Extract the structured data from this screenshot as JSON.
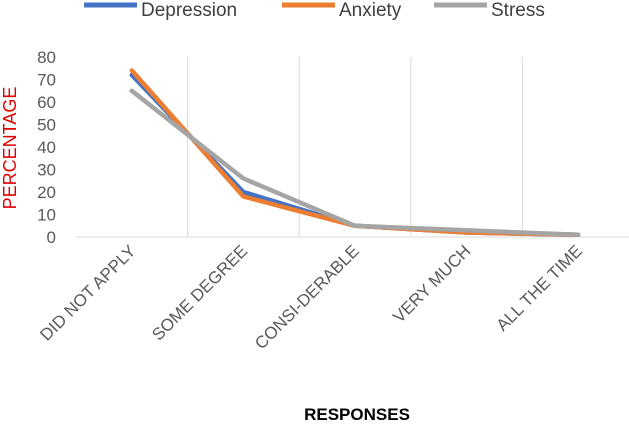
{
  "chart_data": {
    "type": "line",
    "categories": [
      "DID NOT APPLY",
      "SOME DEGREE",
      "CONSI-DERABLE",
      "VERY MUCH",
      "ALL THE TIME"
    ],
    "series": [
      {
        "name": "Depression",
        "color": "#4472C4",
        "values": [
          72,
          20,
          5,
          2,
          1
        ]
      },
      {
        "name": "Anxiety",
        "color": "#ED7D31",
        "values": [
          74,
          18,
          5,
          2,
          1
        ]
      },
      {
        "name": "Stress",
        "color": "#A5A5A5",
        "values": [
          65,
          26,
          5,
          3,
          1
        ]
      }
    ],
    "xlabel": "RESPONSES",
    "ylabel": "PERCENTAGE",
    "ylabel_color": "#E00000",
    "ylim": [
      0,
      80
    ],
    "yticks": [
      "0",
      "10",
      "20",
      "30",
      "40",
      "50",
      "60",
      "70",
      "80"
    ],
    "grid": "vertical",
    "legend": "top"
  }
}
